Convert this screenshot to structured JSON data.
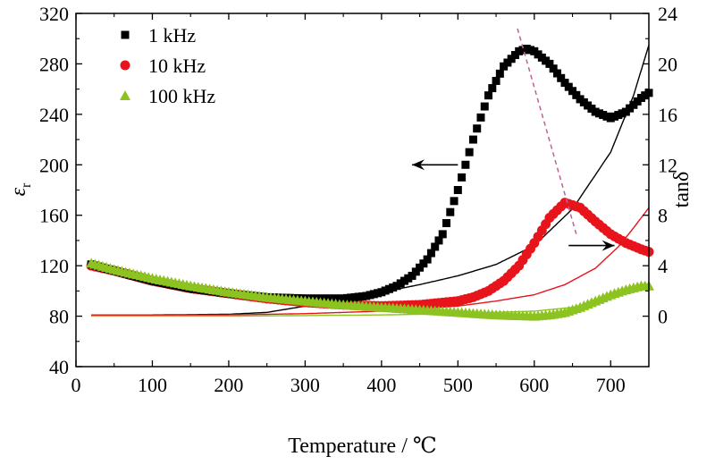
{
  "chart_data": {
    "type": "scatter",
    "title": "",
    "xlabel": "Temperature / ℃",
    "ylabel_left": "ε",
    "ylabel_left_subscript": "r",
    "ylabel_right": "tanδ",
    "xlim": [
      0,
      750
    ],
    "ylim_left": [
      40,
      320
    ],
    "ylim_right": [
      -4,
      24
    ],
    "xticks": [
      "0",
      "100",
      "200",
      "300",
      "400",
      "500",
      "600",
      "700"
    ],
    "yticks_left": [
      "40",
      "80",
      "120",
      "160",
      "200",
      "240",
      "280",
      "320"
    ],
    "yticks_right": [
      "0",
      "4",
      "8",
      "12",
      "16",
      "20",
      "24"
    ],
    "legend_position": "top-left",
    "grid": false,
    "series": [
      {
        "name": "1 kHz",
        "axis": "left",
        "marker": "square",
        "color": "#000000",
        "x": [
          20,
          50,
          100,
          150,
          200,
          250,
          300,
          350,
          380,
          400,
          420,
          440,
          460,
          480,
          500,
          520,
          540,
          560,
          580,
          590,
          600,
          620,
          640,
          660,
          680,
          700,
          720,
          740,
          750
        ],
        "y": [
          121,
          116,
          108,
          102,
          98,
          95,
          94,
          94,
          96,
          99,
          104,
          112,
          125,
          145,
          180,
          220,
          255,
          278,
          290,
          292,
          290,
          280,
          265,
          252,
          242,
          237,
          242,
          253,
          257
        ]
      },
      {
        "name": "10 kHz",
        "axis": "left",
        "marker": "circle",
        "color": "#e8141c",
        "x": [
          20,
          50,
          100,
          150,
          200,
          250,
          300,
          350,
          400,
          450,
          500,
          520,
          540,
          560,
          580,
          600,
          620,
          640,
          660,
          680,
          700,
          720,
          740,
          750
        ],
        "y": [
          120,
          116,
          108,
          102,
          98,
          94,
          91,
          89,
          88,
          89,
          92,
          95,
          100,
          108,
          120,
          138,
          158,
          170,
          166,
          155,
          145,
          138,
          133,
          131
        ]
      },
      {
        "name": "100 kHz",
        "axis": "left",
        "marker": "triangle",
        "color": "#8cc320",
        "x": [
          20,
          50,
          100,
          150,
          200,
          250,
          300,
          350,
          400,
          450,
          500,
          550,
          600,
          620,
          640,
          660,
          680,
          700,
          720,
          740,
          750
        ],
        "y": [
          122,
          117,
          110,
          104,
          99,
          95,
          92,
          89,
          87,
          85,
          83,
          81,
          80,
          81,
          83,
          87,
          92,
          97,
          101,
          104,
          104
        ]
      }
    ],
    "tan_delta_curves": [
      {
        "axis": "right",
        "color": "#000000",
        "x": [
          20,
          100,
          200,
          250,
          300,
          350,
          400,
          450,
          500,
          550,
          600,
          650,
          700,
          730,
          750
        ],
        "y": [
          0.1,
          0.1,
          0.15,
          0.3,
          0.8,
          1.3,
          1.9,
          2.5,
          3.2,
          4.1,
          5.6,
          8.5,
          13.0,
          17.5,
          21.5
        ]
      },
      {
        "axis": "right",
        "color": "#e8141c",
        "x": [
          20,
          100,
          200,
          300,
          400,
          500,
          550,
          600,
          640,
          680,
          710,
          730,
          750
        ],
        "y": [
          0.1,
          0.1,
          0.1,
          0.2,
          0.4,
          0.8,
          1.2,
          1.7,
          2.5,
          3.8,
          5.5,
          7.0,
          8.6
        ]
      },
      {
        "axis": "right",
        "color": "#8cc320",
        "x": [
          20,
          100,
          200,
          300,
          400,
          500,
          600,
          650,
          700,
          730,
          750
        ],
        "y": [
          0.0,
          0.0,
          0.0,
          0.05,
          0.1,
          0.2,
          0.4,
          0.7,
          1.4,
          2.0,
          2.6
        ]
      }
    ],
    "annotations": {
      "peak_trend_line": {
        "color": "#c0609a",
        "x": [
          578,
          655
        ],
        "y_left": [
          308,
          145
        ]
      },
      "left_arrow": {
        "x_from": 500,
        "x_to": 440,
        "y_left": 200
      },
      "right_arrow": {
        "x_from": 645,
        "x_to": 705,
        "y_right": 5.6
      }
    }
  }
}
